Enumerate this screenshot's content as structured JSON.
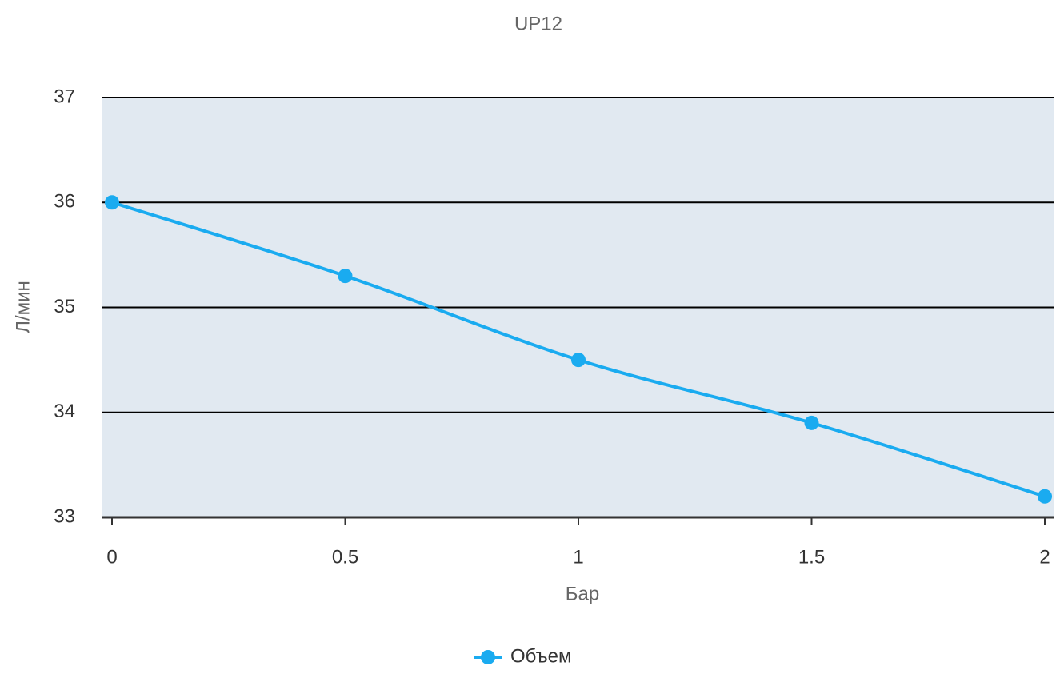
{
  "chart_data": {
    "type": "line",
    "title": "UP12",
    "x_label": "Бар",
    "y_label": "Л/мин",
    "categories": [
      "0",
      "0.5",
      "1",
      "1.5",
      "2"
    ],
    "series": [
      {
        "name": "Объем",
        "color": "#1aabf0",
        "values": [
          36,
          35.3,
          34.5,
          33.9,
          33.2
        ]
      }
    ],
    "ylim": [
      33,
      37
    ],
    "yticks": [
      33,
      34,
      35,
      36,
      37
    ],
    "grid": true,
    "legend": "bottom"
  }
}
